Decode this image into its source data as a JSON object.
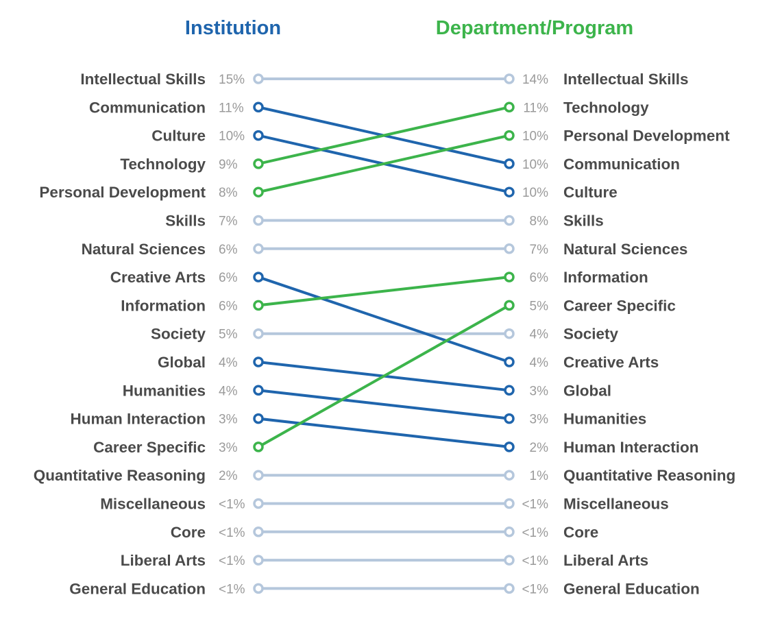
{
  "chart_data": {
    "type": "slope",
    "left_title": "Institution",
    "right_title": "Department/Program",
    "colors": {
      "institution": "#1f65ad",
      "department": "#3cb44b",
      "unchanged": "#b5c7dc",
      "label": "#4a4a4a",
      "percent": "#9a9a9a"
    },
    "left": [
      {
        "label": "Intellectual Skills",
        "pct": "15%"
      },
      {
        "label": "Communication",
        "pct": "11%"
      },
      {
        "label": "Culture",
        "pct": "10%"
      },
      {
        "label": "Technology",
        "pct": "9%"
      },
      {
        "label": "Personal Development",
        "pct": "8%"
      },
      {
        "label": "Skills",
        "pct": "7%"
      },
      {
        "label": "Natural Sciences",
        "pct": "6%"
      },
      {
        "label": "Creative Arts",
        "pct": "6%"
      },
      {
        "label": "Information",
        "pct": "6%"
      },
      {
        "label": "Society",
        "pct": "5%"
      },
      {
        "label": "Global",
        "pct": "4%"
      },
      {
        "label": "Humanities",
        "pct": "4%"
      },
      {
        "label": "Human Interaction",
        "pct": "3%"
      },
      {
        "label": "Career Specific",
        "pct": "3%"
      },
      {
        "label": "Quantitative Reasoning",
        "pct": "2%"
      },
      {
        "label": "Miscellaneous",
        "pct": "<1%"
      },
      {
        "label": "Core",
        "pct": "<1%"
      },
      {
        "label": "Liberal Arts",
        "pct": "<1%"
      },
      {
        "label": "General Education",
        "pct": "<1%"
      }
    ],
    "right": [
      {
        "label": "Intellectual Skills",
        "pct": "14%"
      },
      {
        "label": "Technology",
        "pct": "11%"
      },
      {
        "label": "Personal Development",
        "pct": "10%"
      },
      {
        "label": "Communication",
        "pct": "10%"
      },
      {
        "label": "Culture",
        "pct": "10%"
      },
      {
        "label": "Skills",
        "pct": "8%"
      },
      {
        "label": "Natural Sciences",
        "pct": "7%"
      },
      {
        "label": "Information",
        "pct": "6%"
      },
      {
        "label": "Career Specific",
        "pct": "5%"
      },
      {
        "label": "Society",
        "pct": "4%"
      },
      {
        "label": "Creative Arts",
        "pct": "4%"
      },
      {
        "label": "Global",
        "pct": "3%"
      },
      {
        "label": "Humanities",
        "pct": "3%"
      },
      {
        "label": "Human Interaction",
        "pct": "2%"
      },
      {
        "label": "Quantitative Reasoning",
        "pct": "1%"
      },
      {
        "label": "Miscellaneous",
        "pct": "<1%"
      },
      {
        "label": "Core",
        "pct": "<1%"
      },
      {
        "label": "Liberal Arts",
        "pct": "<1%"
      },
      {
        "label": "General Education",
        "pct": "<1%"
      }
    ],
    "links": [
      {
        "left": 0,
        "right": 0,
        "group": "unchanged"
      },
      {
        "left": 1,
        "right": 3,
        "group": "institution"
      },
      {
        "left": 2,
        "right": 4,
        "group": "institution"
      },
      {
        "left": 3,
        "right": 1,
        "group": "department"
      },
      {
        "left": 4,
        "right": 2,
        "group": "department"
      },
      {
        "left": 5,
        "right": 5,
        "group": "unchanged"
      },
      {
        "left": 6,
        "right": 6,
        "group": "unchanged"
      },
      {
        "left": 7,
        "right": 10,
        "group": "institution"
      },
      {
        "left": 8,
        "right": 7,
        "group": "department"
      },
      {
        "left": 9,
        "right": 9,
        "group": "unchanged"
      },
      {
        "left": 10,
        "right": 11,
        "group": "institution"
      },
      {
        "left": 11,
        "right": 12,
        "group": "institution"
      },
      {
        "left": 12,
        "right": 13,
        "group": "institution"
      },
      {
        "left": 13,
        "right": 8,
        "group": "department"
      },
      {
        "left": 14,
        "right": 14,
        "group": "unchanged"
      },
      {
        "left": 15,
        "right": 15,
        "group": "unchanged"
      },
      {
        "left": 16,
        "right": 16,
        "group": "unchanged"
      },
      {
        "left": 17,
        "right": 17,
        "group": "unchanged"
      },
      {
        "left": 18,
        "right": 18,
        "group": "unchanged"
      }
    ]
  }
}
